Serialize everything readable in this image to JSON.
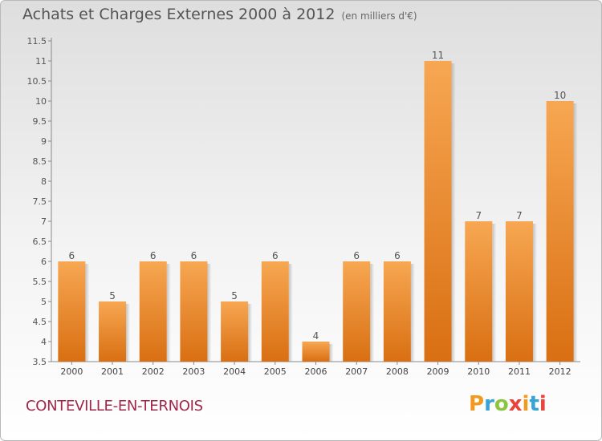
{
  "chart_data": {
    "type": "bar",
    "title": "Achats et Charges Externes 2000 à 2012",
    "subtitle": "(en milliers d'€)",
    "categories": [
      "2000",
      "2001",
      "2002",
      "2003",
      "2004",
      "2005",
      "2006",
      "2007",
      "2008",
      "2009",
      "2010",
      "2011",
      "2012"
    ],
    "values": [
      6,
      5,
      6,
      6,
      5,
      6,
      4,
      6,
      6,
      11,
      7,
      7,
      10
    ],
    "ylim": [
      3.5,
      11.5
    ],
    "yticks": [
      "3.5",
      "4",
      "4.5",
      "5",
      "5.5",
      "6",
      "6.5",
      "7",
      "7.5",
      "8",
      "8.5",
      "9",
      "9.5",
      "10",
      "10.5",
      "11",
      "11.5"
    ],
    "xlabel": "",
    "ylabel": "",
    "grid": false,
    "bar_color": "#f0913a"
  },
  "footer": {
    "commune": "CONTEVILLE-EN-TERNOIS",
    "logo_letters": [
      "P",
      "r",
      "o",
      "x",
      "i",
      "t",
      "i"
    ],
    "logo_colors": [
      "#f29a1f",
      "#3aa3d6",
      "#8cc63f",
      "#e8443a",
      "#f29a1f",
      "#3aa3d6",
      "#e8443a"
    ]
  },
  "colors": {
    "commune_text": "#a0284a",
    "title_text": "#555555"
  }
}
